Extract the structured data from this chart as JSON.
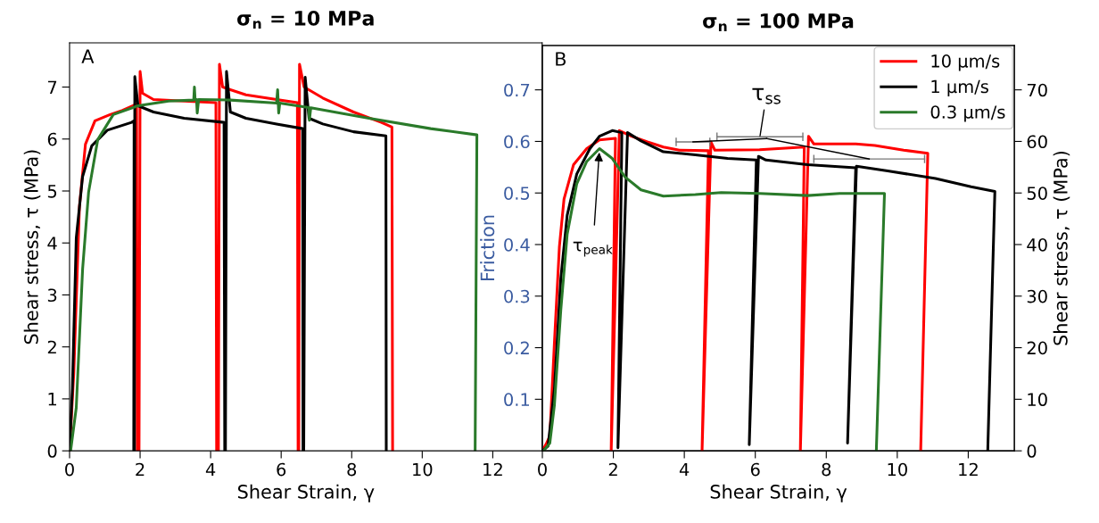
{
  "chart_data": [
    {
      "type": "line",
      "title": "σ$_{n}$ = 10 MPa",
      "xlabel": "Shear Strain, γ",
      "ylabel": "Shear stress, τ (MPa)",
      "xlim": [
        0,
        13.4
      ],
      "ylim": [
        0,
        7.85
      ],
      "xticks": [
        0,
        2,
        4,
        6,
        8,
        10,
        12
      ],
      "yticks": [
        0,
        1,
        2,
        3,
        4,
        5,
        6,
        7
      ],
      "grid": false,
      "annotations": [
        "A"
      ],
      "series": [
        {
          "color": "#ff0000",
          "x": [
            0,
            0.12,
            0.28,
            0.45,
            0.72,
            1.15,
            1.5,
            1.9,
            1.92,
            1.97,
            2.0,
            2.07,
            2.38,
            3.25,
            4.15,
            4.17,
            4.22,
            4.25,
            4.34,
            5.0,
            5.87,
            6.46,
            6.48,
            6.5,
            6.52,
            6.65,
            7.18,
            8.05,
            8.84,
            9.14,
            9.16
          ],
          "values": [
            0,
            1.5,
            4.7,
            5.9,
            6.35,
            6.47,
            6.55,
            6.67,
            0,
            0,
            7.3,
            6.88,
            6.76,
            6.73,
            6.7,
            0,
            0,
            7.44,
            7.0,
            6.85,
            6.76,
            6.7,
            0,
            0,
            7.44,
            7.0,
            6.79,
            6.52,
            6.32,
            6.23,
            0
          ]
        },
        {
          "color": "#000000",
          "x": [
            0,
            0.08,
            0.19,
            0.37,
            0.63,
            1.07,
            1.76,
            1.83,
            1.82,
            1.84,
            1.85,
            1.94,
            2.38,
            3.25,
            4.38,
            4.4,
            4.42,
            4.45,
            4.56,
            5.0,
            5.87,
            6.61,
            6.62,
            6.64,
            6.68,
            6.79,
            7.18,
            8.05,
            8.97,
            8.98
          ],
          "values": [
            0,
            1.2,
            4.1,
            5.28,
            5.87,
            6.17,
            6.32,
            6.35,
            0,
            0,
            7.2,
            6.64,
            6.52,
            6.4,
            6.32,
            0,
            0,
            7.3,
            6.52,
            6.4,
            6.29,
            6.2,
            0,
            0,
            7.19,
            6.4,
            6.29,
            6.14,
            6.06,
            0
          ]
        },
        {
          "color": "#2a7a2a",
          "x": [
            0.03,
            0.19,
            0.37,
            0.54,
            0.8,
            1.24,
            1.94,
            2.81,
            3.52,
            3.54,
            3.56,
            3.6,
            3.62,
            3.66,
            4.56,
            5.87,
            5.9,
            5.93,
            5.96,
            6.74,
            6.78,
            6.8,
            6.84,
            8.49,
            10.24,
            11.55,
            11.5
          ],
          "values": [
            0,
            0.83,
            3.5,
            4.98,
            5.99,
            6.47,
            6.64,
            6.73,
            6.75,
            7.0,
            6.76,
            6.76,
            6.5,
            6.76,
            6.75,
            6.69,
            6.95,
            6.5,
            6.69,
            6.61,
            6.61,
            6.36,
            6.6,
            6.4,
            6.2,
            6.08,
            0
          ]
        }
      ]
    },
    {
      "type": "line",
      "title": "σ$_{n}$ = 100 MPa",
      "xlabel": "Shear Strain, γ",
      "ylabel": "Friction",
      "y2label": "Shear stress, τ (MPa)",
      "xlim": [
        0,
        13.3
      ],
      "ylim": [
        0,
        0.786
      ],
      "y2lim": [
        0,
        78.6
      ],
      "xticks": [
        0,
        2,
        4,
        6,
        8,
        10,
        12
      ],
      "yticks": [
        0.1,
        0.2,
        0.3,
        0.4,
        0.5,
        0.6,
        0.7
      ],
      "y2ticks": [
        0,
        10,
        20,
        30,
        40,
        50,
        60,
        70
      ],
      "grid": false,
      "legend": "top right",
      "annotations": [
        "B",
        {
          "text": "τ$_{peak}$",
          "x": 1.61,
          "y": 0.586
        },
        {
          "text": "τ$_{ss}$",
          "x": 6.13,
          "y": 0.609
        }
      ],
      "series": [
        {
          "name": "10 µm/s",
          "color": "#ff0000",
          "axis": "y2",
          "x": [
            0,
            0.12,
            0.21,
            0.34,
            0.48,
            0.61,
            0.88,
            1.25,
            1.61,
            2.06,
            1.94,
            2.17,
            2.51,
            2.96,
            3.41,
            3.86,
            4.68,
            4.5,
            4.75,
            4.86,
            6.12,
            7.38,
            7.27,
            7.5,
            7.65,
            8.83,
            9.37,
            10.18,
            10.86,
            10.66
          ],
          "values": [
            0,
            1.5,
            2.8,
            21,
            39.6,
            48.8,
            55.5,
            58.6,
            60.3,
            60.6,
            0,
            62.1,
            61.0,
            59.9,
            58.9,
            58.3,
            58.2,
            0,
            59.9,
            58.3,
            58.4,
            58.9,
            0,
            61.0,
            59.5,
            59.5,
            59.2,
            58.3,
            57.7,
            0
          ]
        },
        {
          "name": "1 µm/s",
          "color": "#000000",
          "axis": "y2",
          "x": [
            0,
            0.16,
            0.34,
            0.52,
            0.7,
            0.97,
            1.34,
            1.61,
            1.97,
            2.24,
            2.13,
            2.4,
            2.78,
            3.41,
            4.31,
            5.22,
            6.03,
            5.83,
            6.09,
            6.3,
            7.47,
            8.83,
            8.6,
            8.85,
            9.73,
            11.08,
            12.08,
            12.75,
            12.55
          ],
          "values": [
            0,
            0.9,
            12,
            33.4,
            45.7,
            53.7,
            58.6,
            61,
            62.1,
            61.7,
            0.6,
            61.7,
            60.1,
            58.0,
            57.4,
            56.7,
            56.4,
            1.2,
            57.1,
            56.4,
            55.5,
            54.9,
            1.5,
            55.2,
            54.3,
            52.8,
            51.2,
            50.3,
            0
          ]
        },
        {
          "name": "0.3 µm/s",
          "color": "#2a7a2a",
          "axis": "y2",
          "x": [
            0.03,
            0.21,
            0.34,
            0.52,
            0.7,
            0.97,
            1.25,
            1.61,
            1.97,
            2.33,
            2.78,
            3.41,
            4.31,
            5.04,
            6.12,
            7.47,
            8.38,
            9.64,
            9.41
          ],
          "values": [
            0,
            1.5,
            8.9,
            27.3,
            42,
            51.8,
            56.1,
            58.6,
            56.7,
            53.1,
            50.6,
            49.4,
            49.7,
            50.1,
            49.9,
            49.5,
            49.9,
            49.9,
            0
          ]
        },
        {
          "color": "#777777",
          "axis": "y2",
          "x": [
            3.77,
            4.72
          ],
          "values": [
            59.9,
            59.9
          ]
        },
        {
          "color": "#777777",
          "axis": "y2",
          "x": [
            4.92,
            7.34
          ],
          "values": [
            60.9,
            60.9
          ]
        },
        {
          "color": "#777777",
          "axis": "y2",
          "x": [
            7.65,
            10.77
          ],
          "values": [
            56.6,
            56.6
          ]
        }
      ]
    }
  ]
}
